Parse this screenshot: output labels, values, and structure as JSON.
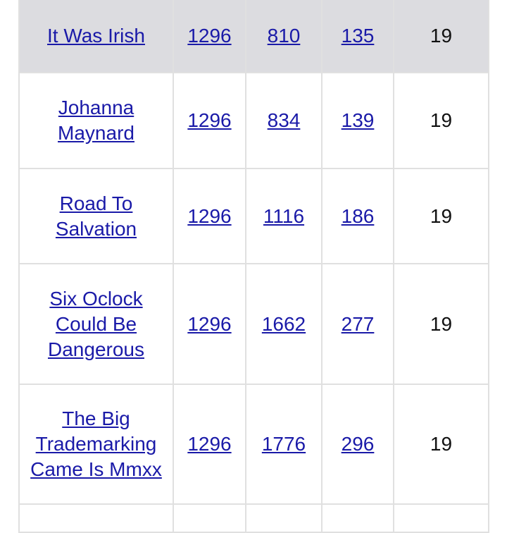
{
  "table": {
    "rows": [
      [
        "It Was Irish",
        "1296",
        "810",
        "135",
        "19"
      ],
      [
        "Johanna Maynard",
        "1296",
        "834",
        "139",
        "19"
      ],
      [
        "Road To Salvation",
        "1296",
        "1116",
        "186",
        "19"
      ],
      [
        "Six Oclock Could Be Dangerous",
        "1296",
        "1662",
        "277",
        "19"
      ],
      [
        "The Big Trademarking Came Is Mmxx",
        "1296",
        "1776",
        "296",
        "19"
      ]
    ]
  }
}
